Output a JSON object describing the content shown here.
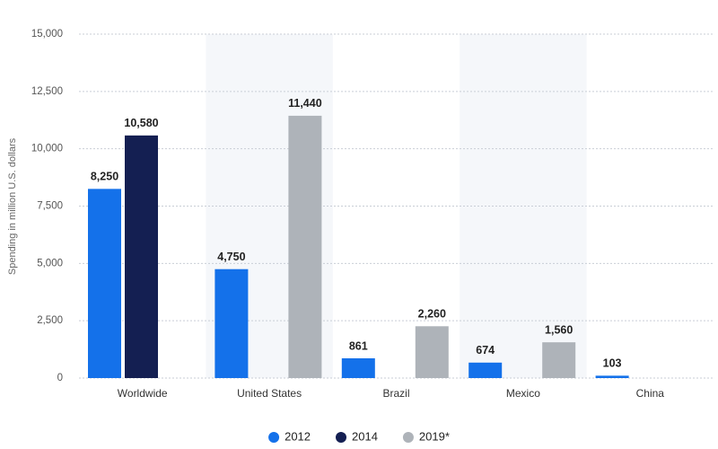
{
  "chart_data": {
    "type": "bar",
    "y_label": "Spending in million U.S. dollars",
    "categories": [
      "Worldwide",
      "United States",
      "Brazil",
      "Mexico",
      "China"
    ],
    "series": [
      {
        "name": "2012",
        "color": "#1471ea",
        "values": [
          8250,
          4750,
          861,
          674,
          103
        ],
        "value_labels": [
          "8,250",
          "4,750",
          "861",
          "674",
          "103"
        ]
      },
      {
        "name": "2014",
        "color": "#141f52",
        "values": [
          10580,
          null,
          null,
          null,
          null
        ],
        "value_labels": [
          "10,580",
          null,
          null,
          null,
          null
        ]
      },
      {
        "name": "2019*",
        "color": "#aeb3b9",
        "values": [
          null,
          11440,
          2260,
          1560,
          null
        ],
        "value_labels": [
          null,
          "11,440",
          "2,260",
          "1,560",
          null
        ]
      }
    ],
    "ylim": [
      0,
      15000
    ],
    "yticks": [
      0,
      {
        "value": 2500,
        "label": "2,500"
      },
      {
        "value": 5000,
        "label": "5,000"
      },
      {
        "value": 7500,
        "label": "7,500"
      },
      {
        "value": 10000,
        "label": "10,000"
      },
      {
        "value": 12500,
        "label": "12,500"
      },
      {
        "value": 15000,
        "label": "15,000"
      }
    ],
    "grid": true
  }
}
